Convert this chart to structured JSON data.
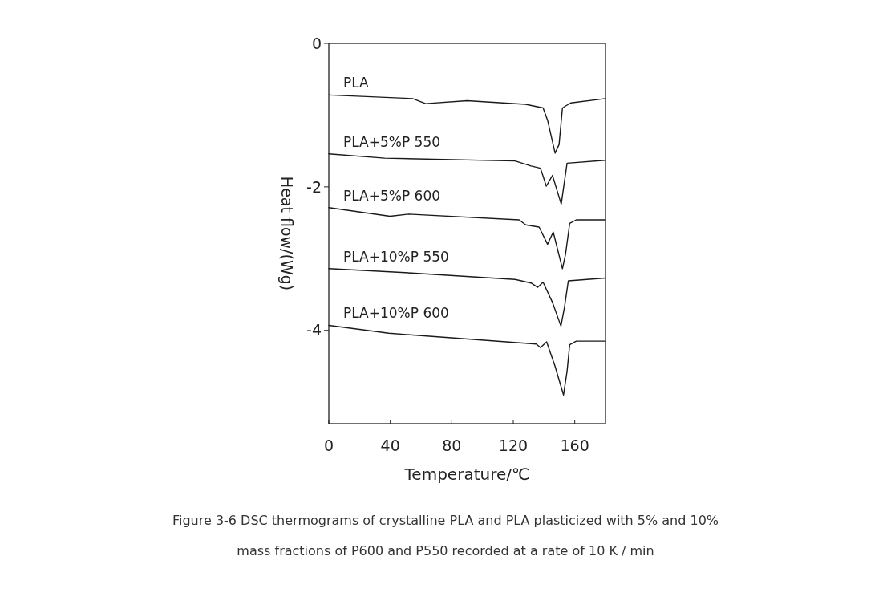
{
  "chart_data": {
    "type": "line",
    "xlabel": "Temperature/℃",
    "ylabel": "Heat flow/(Wg)",
    "xlim": [
      0,
      180
    ],
    "ylim": [
      -5.3,
      0
    ],
    "xticks": [
      0,
      40,
      80,
      120,
      160
    ],
    "yticks": [
      0,
      -2,
      -4
    ],
    "series": [
      {
        "name": "PLA",
        "color": "#1a1a1a",
        "x": [
          0,
          54.5,
          63,
          90,
          128,
          139.4,
          142.3,
          147.2,
          149.8,
          152,
          157.4,
          180
        ],
        "values": [
          -0.72,
          -0.77,
          -0.84,
          -0.8,
          -0.85,
          -0.9,
          -1.07,
          -1.53,
          -1.41,
          -0.9,
          -0.83,
          -0.77
        ]
      },
      {
        "name": "PLA+5%P 550",
        "color": "#1a1a1a",
        "x": [
          0,
          36.4,
          121.2,
          131.6,
          137.7,
          141.5,
          145.5,
          151.2,
          155,
          180
        ],
        "values": [
          -1.54,
          -1.6,
          -1.64,
          -1.71,
          -1.74,
          -1.99,
          -1.84,
          -2.24,
          -1.67,
          -1.63
        ]
      },
      {
        "name": "PLA+5%P 600",
        "color": "#1a1a1a",
        "x": [
          0,
          39.8,
          52,
          123.8,
          128.1,
          136.8,
          142.3,
          146,
          152,
          154,
          156.7,
          161,
          180
        ],
        "values": [
          -2.29,
          -2.41,
          -2.38,
          -2.46,
          -2.53,
          -2.56,
          -2.8,
          -2.63,
          -3.14,
          -2.94,
          -2.51,
          -2.46,
          -2.46
        ]
      },
      {
        "name": "PLA+10%P 550",
        "color": "#1a1a1a",
        "x": [
          0,
          53.7,
          121.2,
          131.6,
          135.9,
          139.4,
          145.5,
          151,
          153.3,
          155.8,
          180
        ],
        "values": [
          -3.14,
          -3.2,
          -3.29,
          -3.34,
          -3.4,
          -3.33,
          -3.61,
          -3.94,
          -3.68,
          -3.31,
          -3.27
        ]
      },
      {
        "name": "PLA+10%P 600",
        "color": "#1a1a1a",
        "x": [
          0,
          39,
          135,
          137.7,
          141.7,
          147.2,
          152.7,
          155,
          156.7,
          161,
          180
        ],
        "values": [
          -3.93,
          -4.04,
          -4.19,
          -4.24,
          -4.16,
          -4.5,
          -4.9,
          -4.57,
          -4.2,
          -4.15,
          -4.15
        ]
      }
    ],
    "annotations": [
      "Figure 3-6 DSC thermograms of crystalline PLA and PLA plasticized with 5% and 10% mass fractions of P600 and P550 recorded at a rate of 10 K / min"
    ]
  }
}
